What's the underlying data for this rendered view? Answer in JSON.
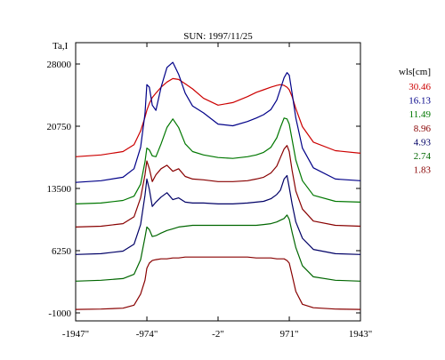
{
  "chart_data": {
    "type": "line",
    "title": "SUN: 1997/11/25",
    "ylabel": "Ta,I",
    "xlabel": "",
    "xlim": [
      -1947,
      1943
    ],
    "ylim": [
      -1000,
      28000
    ],
    "xtick_values": [
      -1947,
      -974,
      -2,
      971,
      1943
    ],
    "xtick_labels": [
      "-1947\"",
      "-974\"",
      "-2\"",
      "971\"",
      "1943\""
    ],
    "ytick_values": [
      -1000,
      6250,
      13500,
      20750,
      28000
    ],
    "ytick_labels": [
      "-1000",
      "6250",
      "13500",
      "20750",
      "28000"
    ],
    "grid": false,
    "legend": {
      "title": "wls[cm]",
      "placement": "right"
    },
    "x": [
      -1947,
      -1600,
      -1300,
      -1150,
      -1060,
      -1000,
      -974,
      -940,
      -900,
      -850,
      -780,
      -700,
      -620,
      -540,
      -450,
      -350,
      -200,
      -2,
      200,
      400,
      520,
      620,
      720,
      800,
      850,
      900,
      940,
      971,
      1010,
      1060,
      1150,
      1300,
      1600,
      1943
    ],
    "series": [
      {
        "name": "30.46",
        "color": "#cc0000",
        "values": [
          17200,
          17400,
          17800,
          18600,
          20200,
          21800,
          22600,
          23400,
          24100,
          24600,
          25300,
          25900,
          26300,
          26200,
          25700,
          25100,
          24000,
          23200,
          23500,
          24200,
          24700,
          25000,
          25300,
          25500,
          25600,
          25500,
          25300,
          25000,
          24200,
          22800,
          20700,
          18900,
          17900,
          17600
        ]
      },
      {
        "name": "16.13",
        "color": "#000088",
        "values": [
          14200,
          14400,
          14800,
          15800,
          18300,
          22200,
          25600,
          25300,
          23200,
          22600,
          25300,
          27600,
          28200,
          26800,
          24600,
          23100,
          22300,
          21000,
          20800,
          21300,
          21700,
          22100,
          22700,
          23800,
          25100,
          26400,
          27000,
          26700,
          24600,
          21700,
          18200,
          15900,
          14600,
          14400
        ]
      },
      {
        "name": "11.49",
        "color": "#007700",
        "values": [
          11700,
          11800,
          12100,
          12600,
          14000,
          16600,
          18200,
          18000,
          17300,
          17200,
          18700,
          20600,
          21600,
          20600,
          18700,
          17800,
          17400,
          17100,
          17000,
          17200,
          17400,
          17700,
          18300,
          19400,
          20600,
          21700,
          21600,
          21000,
          19200,
          16800,
          14400,
          12700,
          12000,
          11900
        ]
      },
      {
        "name": "8.96",
        "color": "#880000",
        "values": [
          9000,
          9100,
          9400,
          10200,
          12400,
          15100,
          16700,
          15800,
          14300,
          15100,
          15800,
          16200,
          15500,
          15800,
          14900,
          14600,
          14500,
          14300,
          14300,
          14400,
          14600,
          14800,
          15300,
          16100,
          17100,
          18100,
          18500,
          17800,
          15600,
          13200,
          11100,
          9700,
          9200,
          9100
        ]
      },
      {
        "name": "4.93",
        "color": "#000066",
        "values": [
          5800,
          5900,
          6200,
          7000,
          9300,
          12700,
          14600,
          13400,
          11400,
          11900,
          12500,
          13000,
          12200,
          12400,
          11900,
          11800,
          11800,
          11700,
          11700,
          11800,
          11900,
          12000,
          12300,
          12800,
          13300,
          14600,
          15000,
          13600,
          11700,
          9600,
          7700,
          6400,
          5900,
          5800
        ]
      },
      {
        "name": "2.74",
        "color": "#006600",
        "values": [
          2700,
          2800,
          3000,
          3500,
          5200,
          7800,
          9000,
          8700,
          7900,
          8000,
          8300,
          8600,
          8800,
          9000,
          9100,
          9200,
          9200,
          9200,
          9200,
          9200,
          9200,
          9300,
          9400,
          9600,
          9800,
          10000,
          10400,
          9900,
          8400,
          6600,
          4500,
          3200,
          2800,
          2700
        ]
      },
      {
        "name": "1.83",
        "color": "#880000",
        "values": [
          -600,
          -550,
          -450,
          -100,
          1200,
          2800,
          4200,
          4800,
          5100,
          5200,
          5300,
          5300,
          5400,
          5400,
          5500,
          5500,
          5500,
          5500,
          5500,
          5500,
          5400,
          5400,
          5400,
          5300,
          5300,
          5300,
          5100,
          4800,
          3400,
          1500,
          0,
          -400,
          -550,
          -600
        ]
      }
    ]
  }
}
